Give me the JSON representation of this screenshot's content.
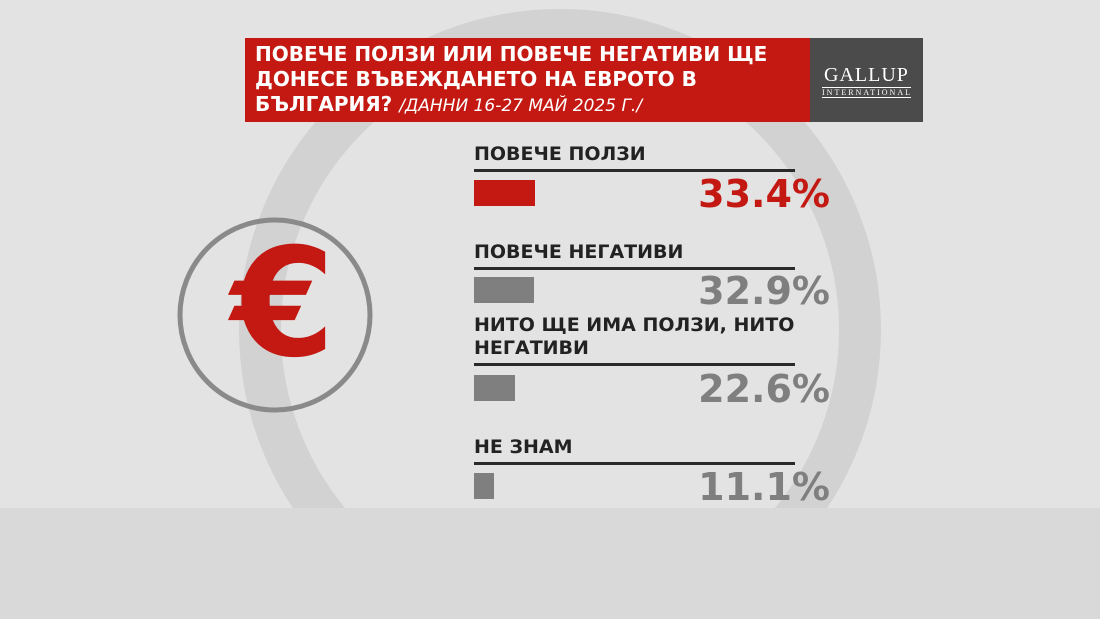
{
  "chart_data": {
    "type": "bar",
    "title": "ПОВЕЧЕ ПОЛЗИ ИЛИ ПОВЕЧЕ НЕГАТИВИ ЩЕ ДОНЕСЕ ВЪВЕЖДАНЕТО НА ЕВРОТО В БЪЛГАРИЯ?",
    "subtitle": "/ДАННИ 16-27 МАЙ 2025 Г./",
    "logo": {
      "name": "GALLUP",
      "tagline": "INTERNATIONAL"
    },
    "categories": [
      "ПОВЕЧЕ ПОЛЗИ",
      "ПОВЕЧЕ НЕГАТИВИ",
      "НИТО ЩЕ ИМА ПОЛЗИ, НИТО НЕГАТИВИ",
      "НЕ ЗНАМ"
    ],
    "values": [
      33.4,
      32.9,
      22.6,
      11.1
    ],
    "value_labels": [
      "33.4%",
      "32.9%",
      "22.6%",
      "11.1%"
    ],
    "colors": [
      "#c31912",
      "#7f7f7f",
      "#7f7f7f",
      "#7f7f7f"
    ]
  }
}
